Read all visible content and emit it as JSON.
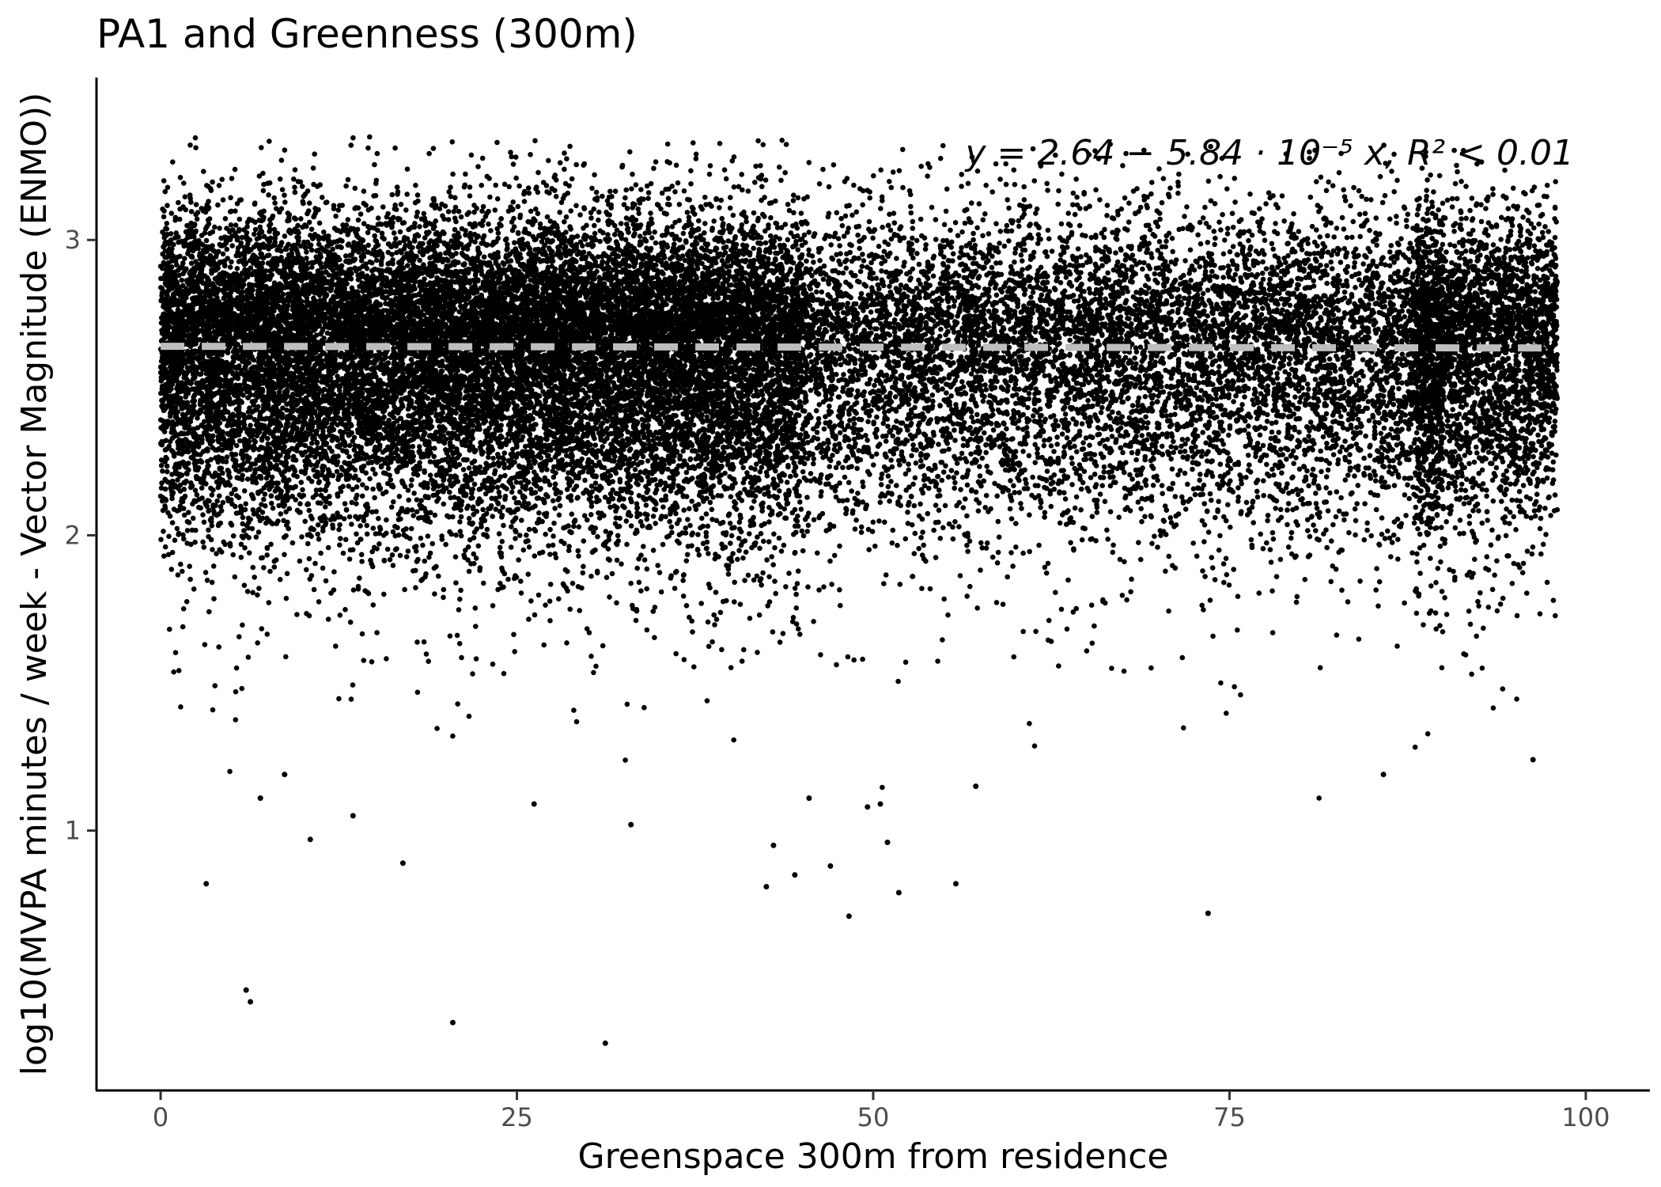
{
  "chart_data": {
    "type": "scatter",
    "title": "PA1 and Greenness (300m)",
    "xlabel": "Greenspace 300m from residence",
    "ylabel": "log10(MVPA minutes / week - Vector Magnitude (ENMO))",
    "xlim": [
      -4.5,
      104.5
    ],
    "ylim": [
      0.12,
      3.55
    ],
    "x_ticks": [
      0,
      25,
      50,
      75,
      100
    ],
    "x_tick_labels": [
      "0",
      "25",
      "50",
      "75",
      "100"
    ],
    "y_ticks": [
      1,
      2,
      3
    ],
    "y_tick_labels": [
      "1",
      "2",
      "3"
    ],
    "grid": false,
    "legend": "none",
    "point_color": "#000000",
    "regression": {
      "intercept": 2.64,
      "slope": -5.84e-05,
      "color": "#bebebe",
      "style": "dashed",
      "x_range": [
        0,
        98
      ]
    },
    "annotation": {
      "equation": "y = 2.64 − 5.84 · 10⁻⁵ x,  R² < 0.01",
      "position": "top-right"
    },
    "distribution": {
      "x_range": [
        0,
        98
      ],
      "y_center": 2.64,
      "y_max": 3.35,
      "visible_outliers": [
        {
          "x": 3.2,
          "y": 0.82
        },
        {
          "x": 6.0,
          "y": 0.46
        },
        {
          "x": 6.3,
          "y": 0.42
        },
        {
          "x": 10.5,
          "y": 0.97
        },
        {
          "x": 17.0,
          "y": 0.89
        },
        {
          "x": 20.5,
          "y": 0.35
        },
        {
          "x": 31.2,
          "y": 0.28
        },
        {
          "x": 33.0,
          "y": 1.02
        },
        {
          "x": 42.5,
          "y": 0.81
        },
        {
          "x": 43.0,
          "y": 0.95
        },
        {
          "x": 44.5,
          "y": 0.85
        },
        {
          "x": 47.0,
          "y": 0.88
        },
        {
          "x": 48.3,
          "y": 0.71
        },
        {
          "x": 51.0,
          "y": 0.96
        },
        {
          "x": 51.8,
          "y": 0.79
        },
        {
          "x": 55.8,
          "y": 0.82
        },
        {
          "x": 73.5,
          "y": 0.72
        },
        {
          "x": 85.8,
          "y": 1.19
        },
        {
          "x": 96.3,
          "y": 1.24
        },
        {
          "x": 7.0,
          "y": 1.11
        },
        {
          "x": 8.7,
          "y": 1.19
        },
        {
          "x": 13.5,
          "y": 1.05
        },
        {
          "x": 26.2,
          "y": 1.09
        },
        {
          "x": 45.5,
          "y": 1.11
        },
        {
          "x": 50.5,
          "y": 1.09
        },
        {
          "x": 49.6,
          "y": 1.08
        },
        {
          "x": 57.2,
          "y": 1.15
        }
      ]
    }
  }
}
